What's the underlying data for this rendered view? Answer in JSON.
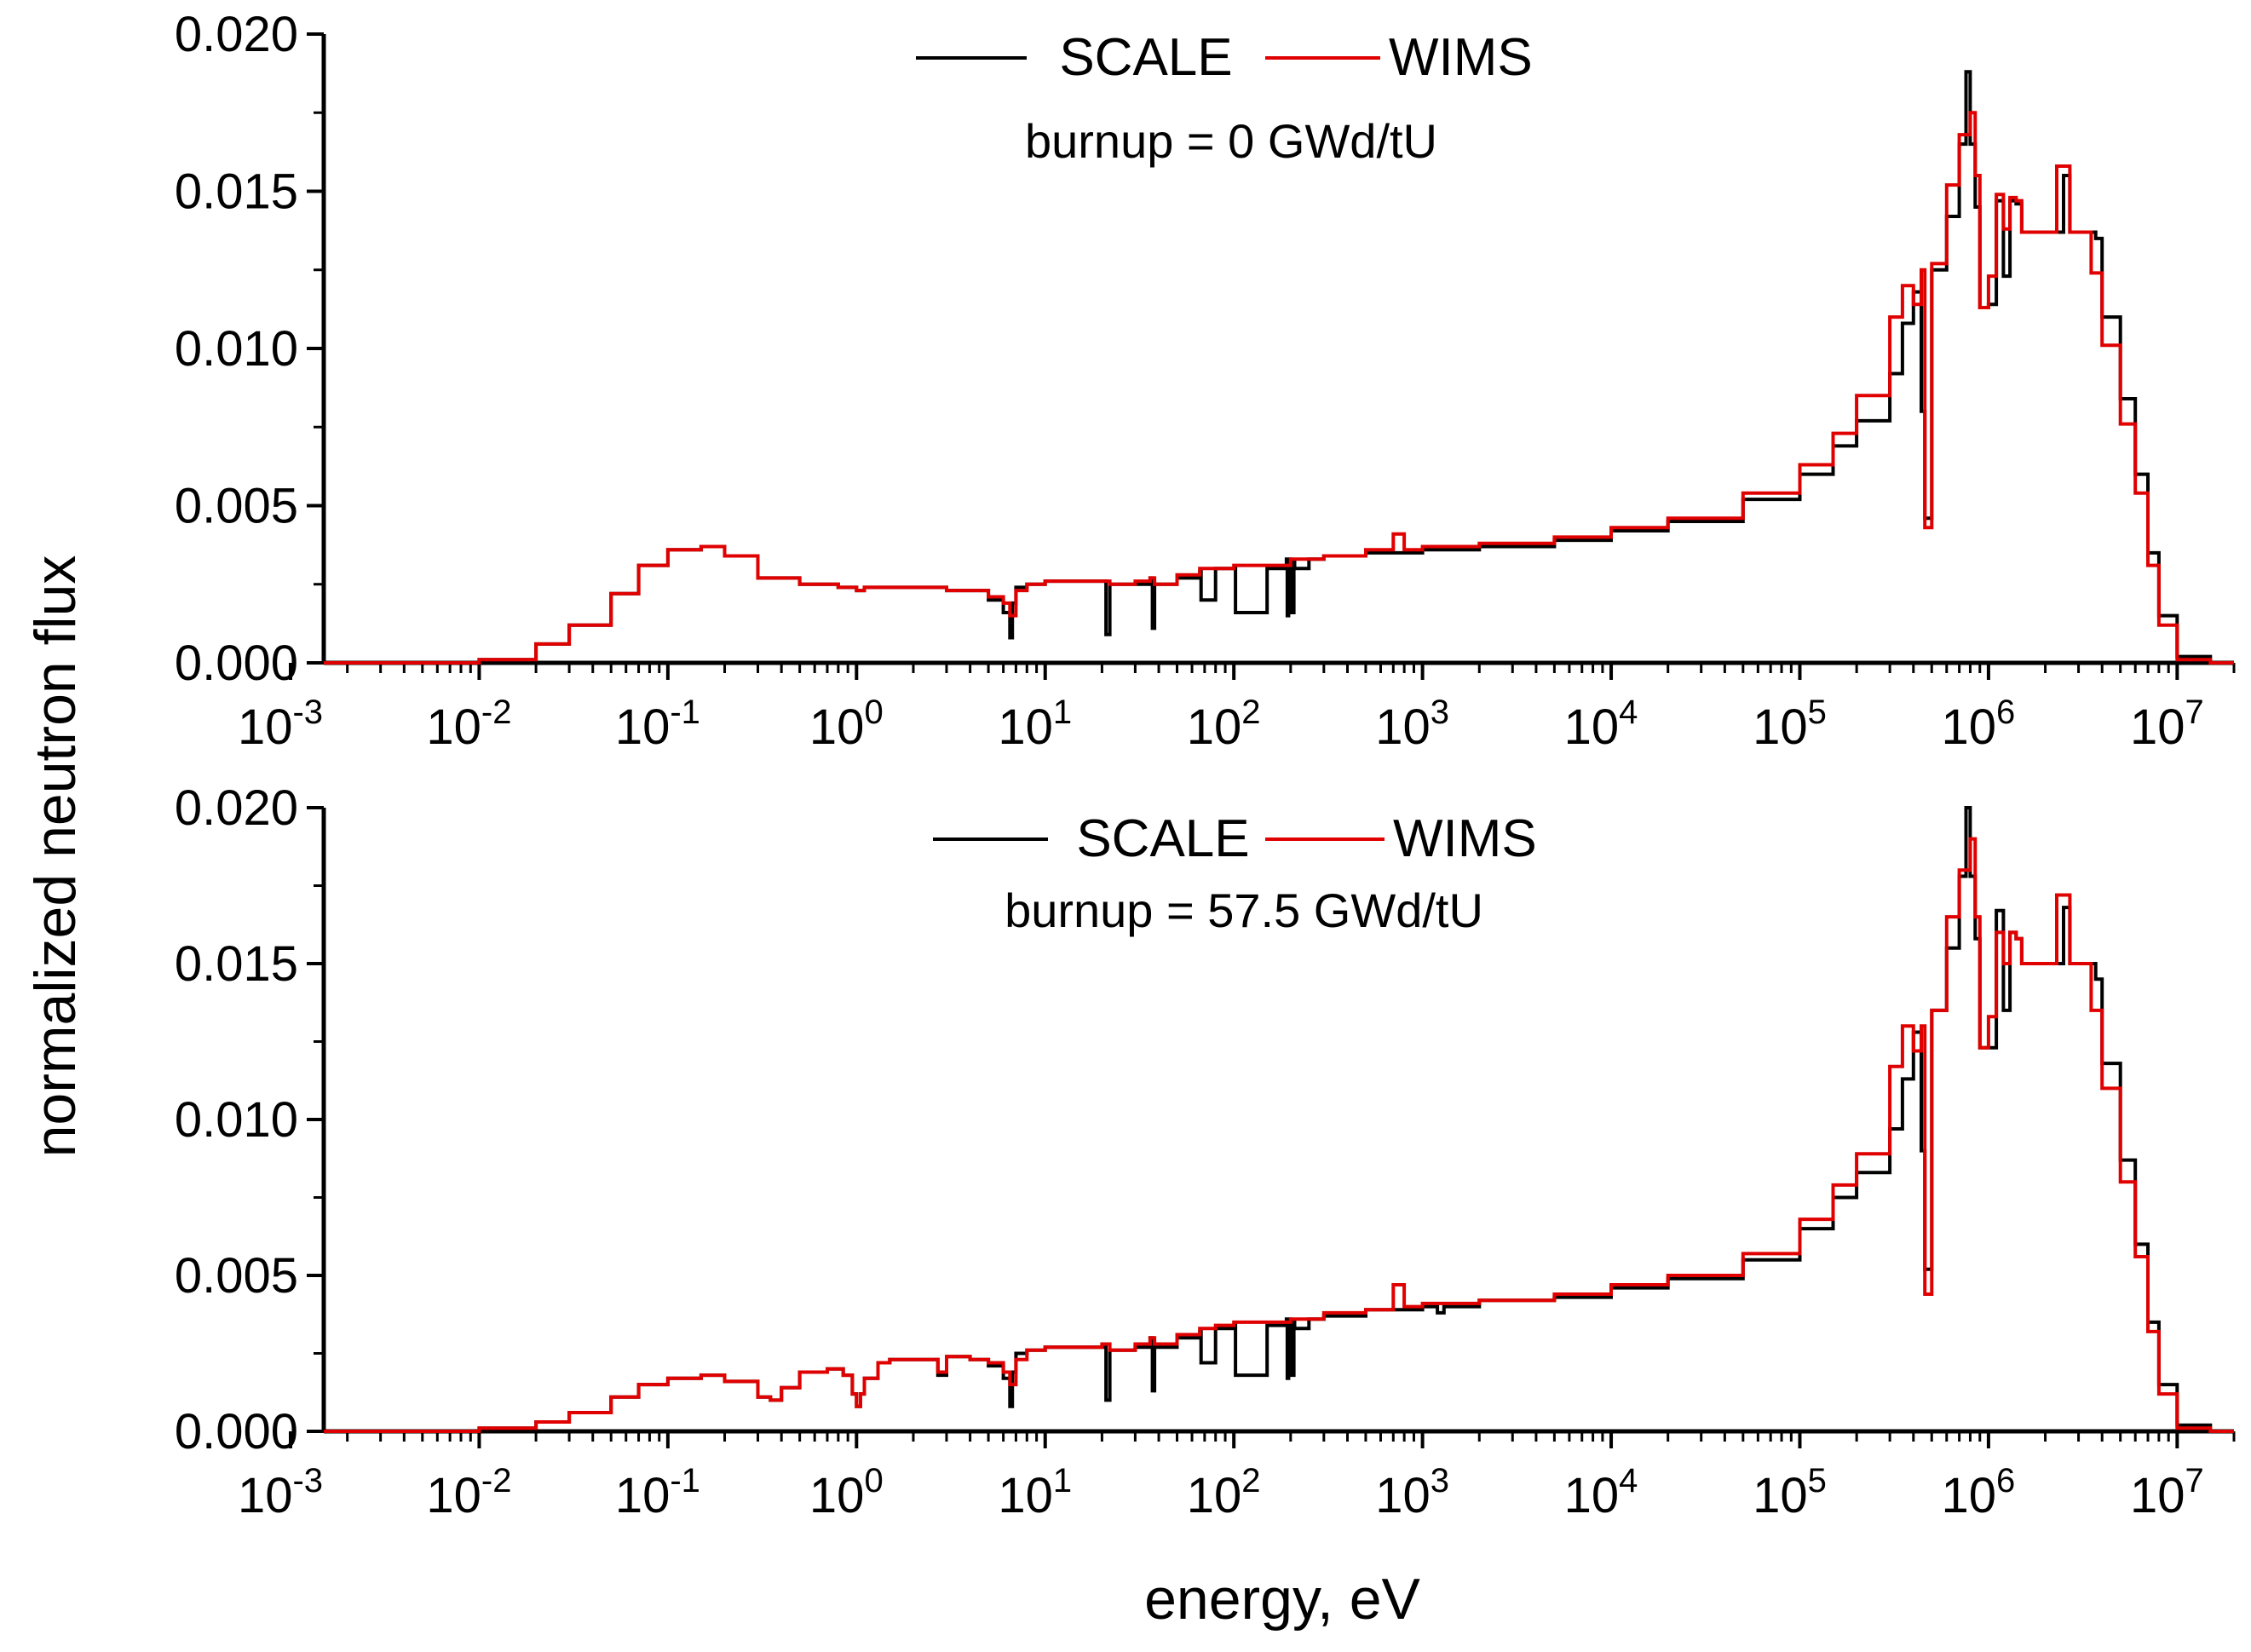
{
  "chart_data": [
    {
      "type": "line",
      "panel": "top",
      "xscale": "log",
      "xlim": [
        0.0015,
        20000000
      ],
      "ylim": [
        0,
        0.02
      ],
      "x_ticks": [
        {
          "value": 0.001,
          "base": "10",
          "exp": "-3"
        },
        {
          "value": 0.01,
          "base": "10",
          "exp": "-2"
        },
        {
          "value": 0.1,
          "base": "10",
          "exp": "-1"
        },
        {
          "value": 1,
          "base": "10",
          "exp": "0"
        },
        {
          "value": 10,
          "base": "10",
          "exp": "1"
        },
        {
          "value": 100,
          "base": "10",
          "exp": "2"
        },
        {
          "value": 1000,
          "base": "10",
          "exp": "3"
        },
        {
          "value": 10000,
          "base": "10",
          "exp": "4"
        },
        {
          "value": 100000,
          "base": "10",
          "exp": "5"
        },
        {
          "value": 1000000,
          "base": "10",
          "exp": "6"
        },
        {
          "value": 10000000,
          "base": "10",
          "exp": "7"
        }
      ],
      "y_ticks": [
        {
          "value": 0,
          "label": "0.000"
        },
        {
          "value": 0.005,
          "label": "0.005"
        },
        {
          "value": 0.01,
          "label": "0.010"
        },
        {
          "value": 0.015,
          "label": "0.015"
        },
        {
          "value": 0.02,
          "label": "0.020"
        }
      ],
      "annotation": "burnup = 0 GWd/tU",
      "series": [
        {
          "name": "SCALE",
          "color": "#000000",
          "x": [
            0.0015,
            0.005,
            0.01,
            0.02,
            0.03,
            0.05,
            0.07,
            0.1,
            0.15,
            0.2,
            0.3,
            0.5,
            0.8,
            1.0,
            1.1,
            1.5,
            2,
            3,
            4,
            5,
            6,
            6.5,
            6.7,
            7,
            8,
            10,
            15,
            20,
            21,
            22,
            30,
            36,
            37,
            38,
            50,
            66,
            67,
            80,
            100,
            102,
            150,
            190,
            192,
            195,
            200,
            208,
            210,
            250,
            300,
            500,
            1000,
            2000,
            5000,
            10000,
            20000,
            50000,
            100000,
            150000,
            200000,
            300000,
            350000,
            400000,
            430000,
            440000,
            460000,
            500000,
            600000,
            700000,
            760000,
            800000,
            850000,
            900000,
            1000000,
            1100000,
            1200000,
            1300000,
            1400000,
            1500000,
            2000000,
            2300000,
            2500000,
            2700000,
            3000000,
            3700000,
            4000000,
            5000000,
            6000000,
            7000000,
            8000000,
            10000000,
            15000000,
            20000000
          ],
          "y": [
            0,
            0,
            0.0001,
            0.0006,
            0.0012,
            0.0022,
            0.0031,
            0.0036,
            0.0037,
            0.0034,
            0.0027,
            0.0025,
            0.0024,
            0.0023,
            0.0024,
            0.0024,
            0.0024,
            0.0023,
            0.0023,
            0.002,
            0.0016,
            0.0008,
            0.0019,
            0.0024,
            0.0025,
            0.0026,
            0.0026,
            0.0026,
            0.0009,
            0.0025,
            0.0025,
            0.0027,
            0.0011,
            0.0025,
            0.0027,
            0.0029,
            0.002,
            0.003,
            0.003,
            0.0016,
            0.003,
            0.0033,
            0.0015,
            0.0033,
            0.0016,
            0.0032,
            0.003,
            0.0033,
            0.0034,
            0.0035,
            0.0036,
            0.0037,
            0.0039,
            0.0042,
            0.0045,
            0.0052,
            0.006,
            0.0069,
            0.0077,
            0.0092,
            0.0108,
            0.0118,
            0.0118,
            0.008,
            0.0046,
            0.0125,
            0.0142,
            0.0165,
            0.0188,
            0.0165,
            0.0145,
            0.0113,
            0.0114,
            0.0147,
            0.0123,
            0.0147,
            0.0146,
            0.0137,
            0.0137,
            0.0137,
            0.0155,
            0.0137,
            0.0137,
            0.0135,
            0.011,
            0.0084,
            0.006,
            0.0035,
            0.0015,
            0.0002,
            0,
            0
          ]
        },
        {
          "name": "WIMS",
          "color": "#e00000",
          "x": [
            0.0015,
            0.005,
            0.01,
            0.02,
            0.03,
            0.05,
            0.07,
            0.1,
            0.15,
            0.2,
            0.3,
            0.5,
            0.8,
            1.0,
            1.1,
            1.5,
            2,
            3,
            4,
            5,
            6,
            6.5,
            7,
            8,
            10,
            15,
            20,
            22,
            30,
            36,
            38,
            50,
            66,
            80,
            100,
            150,
            200,
            250,
            300,
            500,
            700,
            800,
            1000,
            2000,
            5000,
            10000,
            20000,
            50000,
            100000,
            150000,
            200000,
            300000,
            350000,
            400000,
            440000,
            460000,
            500000,
            600000,
            700000,
            800000,
            850000,
            900000,
            1000000,
            1100000,
            1200000,
            1300000,
            1400000,
            1500000,
            2000000,
            2300000,
            2500000,
            2700000,
            3000000,
            3500000,
            4000000,
            5000000,
            6000000,
            7000000,
            8000000,
            10000000,
            15000000,
            20000000
          ],
          "y": [
            0,
            0,
            0.0001,
            0.0006,
            0.0012,
            0.0022,
            0.0031,
            0.0036,
            0.0037,
            0.0034,
            0.0027,
            0.0025,
            0.0024,
            0.0023,
            0.0024,
            0.0024,
            0.0024,
            0.0023,
            0.0023,
            0.0021,
            0.0019,
            0.0015,
            0.0023,
            0.0025,
            0.0026,
            0.0026,
            0.0026,
            0.0025,
            0.0026,
            0.0027,
            0.0025,
            0.0028,
            0.003,
            0.003,
            0.0031,
            0.0031,
            0.0033,
            0.0033,
            0.0034,
            0.0036,
            0.0041,
            0.0036,
            0.0037,
            0.0038,
            0.004,
            0.0043,
            0.0046,
            0.0054,
            0.0063,
            0.0073,
            0.0085,
            0.011,
            0.012,
            0.0114,
            0.0125,
            0.0043,
            0.0127,
            0.0152,
            0.0168,
            0.0175,
            0.0155,
            0.0113,
            0.0123,
            0.0149,
            0.0138,
            0.0148,
            0.0147,
            0.0137,
            0.0137,
            0.0158,
            0.0158,
            0.0137,
            0.0137,
            0.0124,
            0.0101,
            0.0076,
            0.0054,
            0.0031,
            0.0012,
            0.0001,
            0,
            0
          ]
        }
      ]
    },
    {
      "type": "line",
      "panel": "bottom",
      "xscale": "log",
      "xlim": [
        0.0015,
        20000000
      ],
      "ylim": [
        0,
        0.02
      ],
      "x_ticks": [
        {
          "value": 0.001,
          "base": "10",
          "exp": "-3"
        },
        {
          "value": 0.01,
          "base": "10",
          "exp": "-2"
        },
        {
          "value": 0.1,
          "base": "10",
          "exp": "-1"
        },
        {
          "value": 1,
          "base": "10",
          "exp": "0"
        },
        {
          "value": 10,
          "base": "10",
          "exp": "1"
        },
        {
          "value": 100,
          "base": "10",
          "exp": "2"
        },
        {
          "value": 1000,
          "base": "10",
          "exp": "3"
        },
        {
          "value": 10000,
          "base": "10",
          "exp": "4"
        },
        {
          "value": 100000,
          "base": "10",
          "exp": "5"
        },
        {
          "value": 1000000,
          "base": "10",
          "exp": "6"
        },
        {
          "value": 10000000,
          "base": "10",
          "exp": "7"
        }
      ],
      "y_ticks": [
        {
          "value": 0,
          "label": "0.000"
        },
        {
          "value": 0.005,
          "label": "0.005"
        },
        {
          "value": 0.01,
          "label": "0.010"
        },
        {
          "value": 0.015,
          "label": "0.015"
        },
        {
          "value": 0.02,
          "label": "0.020"
        }
      ],
      "annotation": "burnup = 57.5 GWd/tU",
      "series": [
        {
          "name": "SCALE",
          "color": "#000000",
          "x": [
            0.0015,
            0.005,
            0.01,
            0.02,
            0.03,
            0.05,
            0.07,
            0.1,
            0.15,
            0.2,
            0.3,
            0.35,
            0.4,
            0.5,
            0.7,
            0.85,
            0.95,
            1.0,
            1.05,
            1.1,
            1.3,
            1.5,
            2,
            2.6,
            2.7,
            3,
            4,
            5,
            6,
            6.5,
            6.7,
            7,
            8,
            10,
            15,
            20,
            21,
            22,
            30,
            36,
            37,
            38,
            50,
            66,
            67,
            80,
            100,
            102,
            150,
            190,
            192,
            195,
            200,
            208,
            210,
            250,
            300,
            500,
            1000,
            1200,
            1300,
            2000,
            5000,
            10000,
            20000,
            50000,
            100000,
            150000,
            200000,
            300000,
            350000,
            400000,
            430000,
            440000,
            460000,
            500000,
            600000,
            700000,
            760000,
            800000,
            850000,
            900000,
            1000000,
            1100000,
            1200000,
            1300000,
            1400000,
            1500000,
            2000000,
            2300000,
            2500000,
            2700000,
            3000000,
            3700000,
            4000000,
            5000000,
            6000000,
            7000000,
            8000000,
            10000000,
            15000000,
            20000000
          ],
          "y": [
            0,
            0,
            0.0001,
            0.0003,
            0.0006,
            0.0011,
            0.0015,
            0.0017,
            0.0018,
            0.0016,
            0.0011,
            0.001,
            0.0014,
            0.0019,
            0.002,
            0.0018,
            0.0012,
            0.0008,
            0.0012,
            0.0017,
            0.0022,
            0.0023,
            0.0023,
            0.0023,
            0.0018,
            0.0024,
            0.0023,
            0.0021,
            0.0017,
            0.0008,
            0.0019,
            0.0025,
            0.0026,
            0.0027,
            0.0027,
            0.0027,
            0.001,
            0.0026,
            0.0027,
            0.003,
            0.0013,
            0.0027,
            0.003,
            0.0032,
            0.0022,
            0.0033,
            0.0034,
            0.0018,
            0.0034,
            0.0036,
            0.0017,
            0.0036,
            0.0018,
            0.0035,
            0.0033,
            0.0036,
            0.0037,
            0.0039,
            0.004,
            0.0038,
            0.004,
            0.0042,
            0.0043,
            0.0046,
            0.0049,
            0.0055,
            0.0065,
            0.0075,
            0.0083,
            0.0097,
            0.0113,
            0.0128,
            0.0128,
            0.009,
            0.0052,
            0.0135,
            0.0155,
            0.0178,
            0.02,
            0.0178,
            0.0158,
            0.0123,
            0.0123,
            0.0167,
            0.0135,
            0.016,
            0.0158,
            0.015,
            0.015,
            0.015,
            0.0168,
            0.015,
            0.015,
            0.0145,
            0.0118,
            0.0087,
            0.006,
            0.0035,
            0.0015,
            0.0002,
            0,
            0
          ]
        },
        {
          "name": "WIMS",
          "color": "#e00000",
          "x": [
            0.0015,
            0.005,
            0.01,
            0.02,
            0.03,
            0.05,
            0.07,
            0.1,
            0.15,
            0.2,
            0.3,
            0.35,
            0.4,
            0.5,
            0.7,
            0.85,
            0.95,
            1.0,
            1.05,
            1.1,
            1.3,
            1.5,
            2,
            2.6,
            2.7,
            3,
            4,
            5,
            6,
            6.5,
            7,
            8,
            10,
            15,
            20,
            22,
            30,
            36,
            38,
            50,
            66,
            80,
            100,
            150,
            200,
            250,
            300,
            500,
            700,
            800,
            1000,
            2000,
            5000,
            10000,
            20000,
            50000,
            100000,
            150000,
            200000,
            300000,
            350000,
            400000,
            440000,
            460000,
            500000,
            600000,
            700000,
            800000,
            850000,
            900000,
            1000000,
            1100000,
            1200000,
            1300000,
            1400000,
            1500000,
            2000000,
            2300000,
            2500000,
            2700000,
            3000000,
            3500000,
            4000000,
            5000000,
            6000000,
            7000000,
            8000000,
            10000000,
            15000000,
            20000000
          ],
          "y": [
            0,
            0,
            0.0001,
            0.0003,
            0.0006,
            0.0011,
            0.0015,
            0.0017,
            0.0018,
            0.0016,
            0.0011,
            0.001,
            0.0014,
            0.0019,
            0.002,
            0.0018,
            0.0012,
            0.0008,
            0.0012,
            0.0017,
            0.0022,
            0.0023,
            0.0023,
            0.0023,
            0.0019,
            0.0024,
            0.0023,
            0.0022,
            0.0019,
            0.0015,
            0.0023,
            0.0026,
            0.0027,
            0.0027,
            0.0028,
            0.0026,
            0.0028,
            0.003,
            0.0028,
            0.0031,
            0.0033,
            0.0034,
            0.0035,
            0.0035,
            0.0036,
            0.0036,
            0.0038,
            0.0039,
            0.0047,
            0.004,
            0.0041,
            0.0042,
            0.0044,
            0.0047,
            0.005,
            0.0057,
            0.0068,
            0.0079,
            0.0089,
            0.0117,
            0.013,
            0.0122,
            0.013,
            0.0044,
            0.0135,
            0.0165,
            0.018,
            0.019,
            0.0165,
            0.0123,
            0.0133,
            0.016,
            0.015,
            0.016,
            0.0158,
            0.015,
            0.015,
            0.0172,
            0.0172,
            0.015,
            0.015,
            0.0135,
            0.011,
            0.008,
            0.0056,
            0.0032,
            0.0012,
            0.0001,
            0,
            0
          ]
        }
      ]
    }
  ],
  "legend": {
    "scale_label": "SCALE",
    "wims_label": "WIMS"
  },
  "axes": {
    "ylabel": "normalized neutron flux",
    "xlabel": "energy, eV"
  }
}
